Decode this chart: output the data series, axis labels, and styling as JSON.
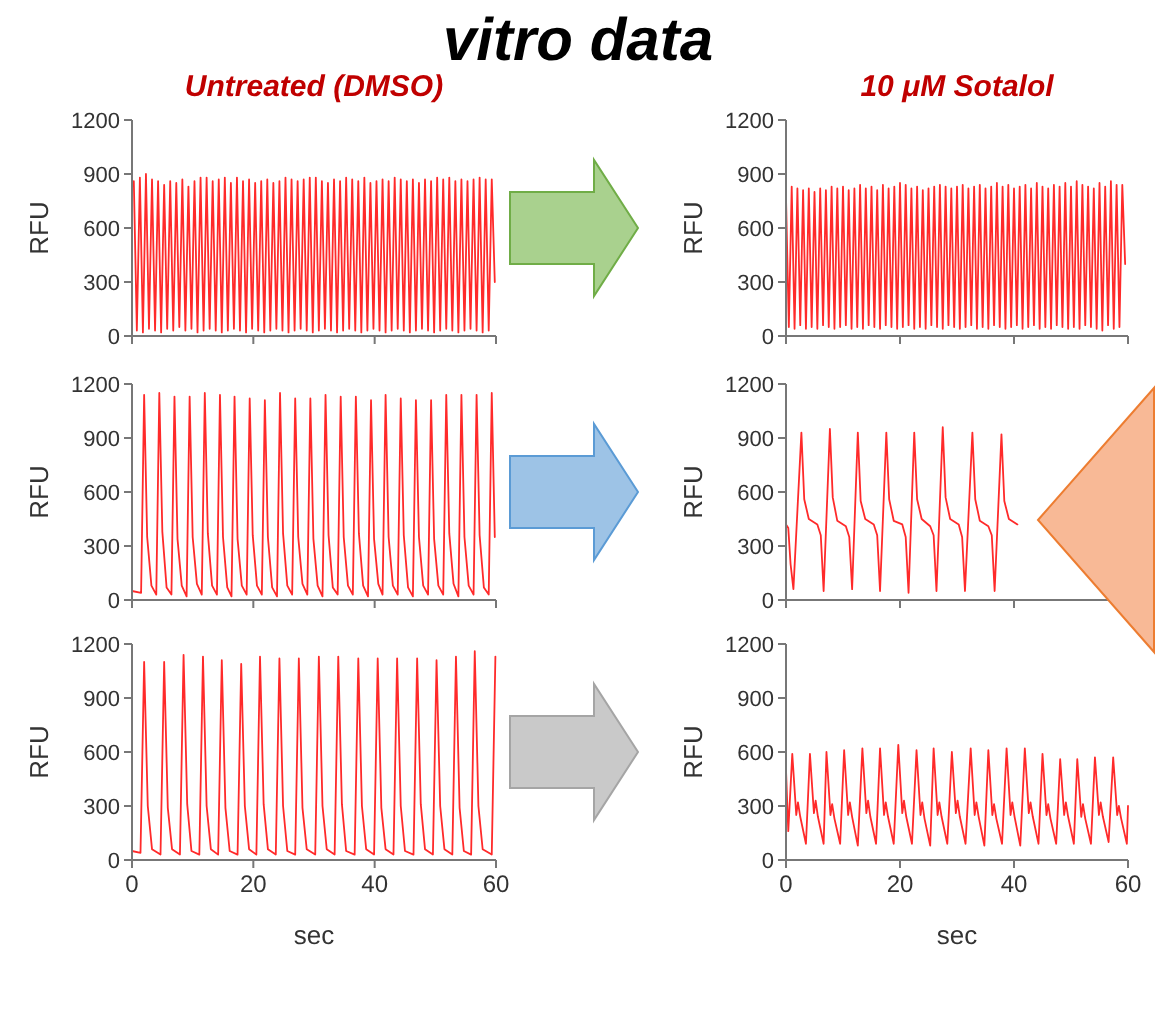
{
  "chart_data": [
    {
      "type": "line",
      "title": "Untreated (DMSO)",
      "annotations": [
        "vitro data"
      ],
      "ylabel": "RFU",
      "xlim": [
        0,
        60
      ],
      "xticks": [
        0,
        20,
        40,
        60
      ],
      "ylim": [
        0,
        1200
      ],
      "yticks": [
        0,
        300,
        600,
        900,
        1200
      ],
      "tick_labels": "y",
      "x": [
        0.3,
        0.8,
        1.3,
        1.8,
        2.3,
        2.8,
        3.3,
        3.8,
        4.3,
        4.8,
        5.3,
        5.8,
        6.3,
        6.8,
        7.3,
        7.8,
        8.3,
        8.8,
        9.3,
        9.8,
        10.3,
        10.8,
        11.3,
        11.8,
        12.3,
        12.8,
        13.3,
        13.8,
        14.3,
        14.8,
        15.3,
        15.8,
        16.3,
        16.8,
        17.3,
        17.8,
        18.3,
        18.8,
        19.3,
        19.8,
        20.3,
        20.8,
        21.3,
        21.8,
        22.3,
        22.8,
        23.3,
        23.8,
        24.3,
        24.8,
        25.3,
        25.8,
        26.3,
        26.8,
        27.3,
        27.8,
        28.3,
        28.8,
        29.3,
        29.8,
        30.3,
        30.8,
        31.3,
        31.8,
        32.3,
        32.8,
        33.3,
        33.8,
        34.3,
        34.8,
        35.3,
        35.8,
        36.3,
        36.8,
        37.3,
        37.8,
        38.3,
        38.8,
        39.3,
        39.8,
        40.3,
        40.8,
        41.3,
        41.8,
        42.3,
        42.8,
        43.3,
        43.8,
        44.3,
        44.8,
        45.3,
        45.8,
        46.3,
        46.8,
        47.3,
        47.8,
        48.3,
        48.8,
        49.3,
        49.8,
        50.3,
        50.8,
        51.3,
        51.8,
        52.3,
        52.8,
        53.3,
        53.8,
        54.3,
        54.8,
        55.3,
        55.8,
        56.3,
        56.8,
        57.3,
        57.8,
        58.3,
        58.8,
        59.3,
        59.8
      ],
      "series": [
        {
          "color": "#ff2a2a",
          "values": [
            860,
            30,
            880,
            20,
            900,
            40,
            870,
            30,
            860,
            20,
            840,
            40,
            860,
            30,
            850,
            50,
            870,
            30,
            830,
            40,
            860,
            20,
            880,
            30,
            880,
            40,
            860,
            30,
            870,
            20,
            880,
            30,
            850,
            40,
            880,
            30,
            860,
            20,
            870,
            40,
            850,
            30,
            860,
            20,
            870,
            30,
            850,
            40,
            860,
            30,
            880,
            20,
            870,
            30,
            860,
            40,
            870,
            30,
            880,
            20,
            880,
            30,
            860,
            40,
            850,
            30,
            870,
            20,
            860,
            30,
            880,
            40,
            870,
            30,
            860,
            20,
            880,
            30,
            850,
            40,
            860,
            30,
            870,
            20,
            860,
            30,
            880,
            40,
            870,
            30,
            860,
            20,
            870,
            30,
            850,
            40,
            870,
            30,
            860,
            20,
            880,
            30,
            870,
            40,
            880,
            30,
            860,
            20,
            870,
            30,
            860,
            40,
            870,
            30,
            880,
            20,
            870,
            30,
            870,
            300
          ]
        }
      ]
    },
    {
      "type": "line",
      "title": "10 μM Sotalol",
      "ylabel": "RFU",
      "xlim": [
        0,
        60
      ],
      "xticks": [
        0,
        20,
        40,
        60
      ],
      "ylim": [
        0,
        1200
      ],
      "yticks": [
        0,
        300,
        600,
        900,
        1200
      ],
      "tick_labels": "y",
      "x": [
        0,
        0.5,
        1,
        1.5,
        2,
        2.5,
        3,
        3.5,
        4,
        4.5,
        5,
        5.5,
        6,
        6.5,
        7,
        7.5,
        8,
        8.5,
        9,
        9.5,
        10,
        10.5,
        11,
        11.5,
        12,
        12.5,
        13,
        13.5,
        14,
        14.5,
        15,
        15.5,
        16,
        16.5,
        17,
        17.5,
        18,
        18.5,
        19,
        19.5,
        20,
        20.5,
        21,
        21.5,
        22,
        22.5,
        23,
        23.5,
        24,
        24.5,
        25,
        25.5,
        26,
        26.5,
        27,
        27.5,
        28,
        28.5,
        29,
        29.5,
        30,
        30.5,
        31,
        31.5,
        32,
        32.5,
        33,
        33.5,
        34,
        34.5,
        35,
        35.5,
        36,
        36.5,
        37,
        37.5,
        38,
        38.5,
        39,
        39.5,
        40,
        40.5,
        41,
        41.5,
        42,
        42.5,
        43,
        43.5,
        44,
        44.5,
        45,
        45.5,
        46,
        46.5,
        47,
        47.5,
        48,
        48.5,
        49,
        49.5,
        50,
        50.5,
        51,
        51.5,
        52,
        52.5,
        53,
        53.5,
        54,
        54.5,
        55,
        55.5,
        56,
        56.5,
        57,
        57.5,
        58,
        58.5,
        59,
        59.5
      ],
      "series": [
        {
          "color": "#ff2a2a",
          "values": [
            770,
            50,
            830,
            40,
            820,
            60,
            810,
            40,
            820,
            50,
            800,
            40,
            820,
            60,
            810,
            50,
            830,
            40,
            820,
            50,
            830,
            60,
            810,
            40,
            820,
            50,
            840,
            40,
            820,
            60,
            830,
            50,
            810,
            40,
            840,
            60,
            820,
            50,
            830,
            40,
            850,
            50,
            840,
            60,
            820,
            40,
            830,
            50,
            810,
            40,
            820,
            60,
            830,
            50,
            840,
            40,
            830,
            60,
            820,
            50,
            830,
            40,
            840,
            50,
            820,
            60,
            830,
            40,
            840,
            50,
            820,
            40,
            830,
            60,
            850,
            50,
            830,
            40,
            840,
            50,
            820,
            60,
            830,
            40,
            840,
            50,
            820,
            60,
            850,
            40,
            830,
            50,
            820,
            40,
            840,
            60,
            830,
            50,
            850,
            40,
            830,
            50,
            860,
            40,
            840,
            60,
            830,
            50,
            820,
            40,
            850,
            30,
            830,
            60,
            860,
            40,
            840,
            50,
            840,
            400
          ]
        }
      ]
    },
    {
      "type": "line",
      "ylabel": "RFU",
      "xlim": [
        0,
        60
      ],
      "xticks": [
        0,
        20,
        40,
        60
      ],
      "ylim": [
        0,
        1200
      ],
      "yticks": [
        0,
        300,
        600,
        900,
        1200
      ],
      "tick_labels": "y",
      "x": [
        0,
        1.5,
        2,
        2.5,
        3.2,
        4,
        4.5,
        5,
        5.7,
        6.5,
        7,
        7.5,
        8.2,
        9,
        9.5,
        10,
        10.7,
        11.5,
        12,
        12.5,
        13.2,
        14,
        14.5,
        15,
        15.7,
        16.4,
        16.9,
        17.4,
        18.1,
        18.9,
        19.4,
        19.9,
        20.6,
        21.4,
        21.9,
        22.4,
        23.1,
        23.9,
        24.4,
        24.9,
        25.6,
        26.4,
        26.9,
        27.4,
        28.1,
        28.9,
        29.4,
        29.9,
        30.6,
        31.4,
        31.9,
        32.4,
        33.1,
        33.9,
        34.4,
        34.9,
        35.6,
        36.4,
        36.9,
        37.4,
        38.1,
        38.9,
        39.4,
        39.9,
        40.6,
        41.3,
        41.8,
        42.3,
        43,
        43.8,
        44.3,
        44.8,
        45.5,
        46.3,
        46.8,
        47.3,
        48,
        48.8,
        49.3,
        49.8,
        50.5,
        51.3,
        51.8,
        52.3,
        53,
        53.8,
        54.3,
        54.8,
        55.5,
        56.3,
        56.8,
        57.3,
        58,
        58.8,
        59.3,
        59.8
      ],
      "series": [
        {
          "color": "#ff2a2a",
          "values": [
            50,
            40,
            1140,
            350,
            80,
            30,
            1150,
            380,
            70,
            30,
            1130,
            340,
            80,
            20,
            1130,
            350,
            90,
            30,
            1150,
            370,
            80,
            30,
            1140,
            350,
            70,
            20,
            1130,
            340,
            80,
            30,
            1120,
            360,
            80,
            30,
            1110,
            350,
            70,
            20,
            1150,
            370,
            80,
            30,
            1120,
            350,
            90,
            30,
            1120,
            340,
            80,
            20,
            1140,
            360,
            70,
            30,
            1130,
            350,
            80,
            30,
            1130,
            370,
            80,
            20,
            1110,
            340,
            90,
            30,
            1140,
            350,
            80,
            30,
            1120,
            360,
            70,
            20,
            1110,
            350,
            80,
            30,
            1110,
            340,
            80,
            30,
            1140,
            370,
            90,
            20,
            1140,
            350,
            80,
            30,
            1140,
            360,
            70,
            30,
            1150,
            350
          ]
        }
      ]
    },
    {
      "type": "line",
      "ylabel": "RFU",
      "xlim": [
        0,
        60
      ],
      "xticks": [
        0,
        20,
        40,
        60
      ],
      "ylim": [
        0,
        1200
      ],
      "yticks": [
        0,
        300,
        600,
        900,
        1200
      ],
      "tick_labels": "y",
      "x": [
        0,
        0.4,
        0.8,
        1.3,
        2.7,
        3.2,
        4,
        5.5,
        6.1,
        6.6,
        7.7,
        8.2,
        9,
        10.5,
        11.1,
        11.6,
        12.6,
        13.1,
        13.9,
        15.4,
        16,
        16.5,
        17.6,
        18.1,
        18.9,
        20.4,
        21,
        21.5,
        22.5,
        23,
        23.8,
        25.3,
        25.9,
        26.4,
        27.5,
        28,
        28.8,
        30.3,
        30.9,
        31.4,
        32.7,
        33.2,
        34,
        35.5,
        36.1,
        36.6,
        37.8,
        38.3,
        39.1,
        40.6
      ],
      "series": [
        {
          "color": "#ff2a2a",
          "values": [
            420,
            400,
            200,
            60,
            930,
            560,
            450,
            420,
            360,
            50,
            950,
            570,
            440,
            410,
            350,
            60,
            930,
            550,
            450,
            420,
            360,
            50,
            930,
            560,
            440,
            420,
            350,
            40,
            930,
            560,
            450,
            410,
            360,
            50,
            960,
            570,
            450,
            420,
            350,
            50,
            930,
            560,
            440,
            410,
            360,
            50,
            920,
            550,
            450,
            420
          ]
        }
      ]
    },
    {
      "type": "line",
      "xlabel": "sec",
      "ylabel": "RFU",
      "xlim": [
        0,
        60
      ],
      "xticks": [
        0,
        20,
        40,
        60
      ],
      "ylim": [
        0,
        1200
      ],
      "yticks": [
        0,
        300,
        600,
        900,
        1200
      ],
      "x": [
        0,
        1.4,
        2,
        2.6,
        3.3,
        4.7,
        5.3,
        5.9,
        6.6,
        7.9,
        8.5,
        9.1,
        9.8,
        11.1,
        11.7,
        12.3,
        13,
        14.2,
        14.8,
        15.4,
        16.1,
        17.4,
        18,
        18.6,
        19.3,
        20.5,
        21.1,
        21.7,
        22.4,
        23.7,
        24.3,
        24.9,
        25.6,
        26.9,
        27.5,
        28.1,
        28.8,
        30.2,
        30.8,
        31.4,
        32.1,
        33.4,
        34,
        34.6,
        35.3,
        36.7,
        37.3,
        37.9,
        38.6,
        39.9,
        40.5,
        41.1,
        41.8,
        43.1,
        43.7,
        44.3,
        45,
        46.4,
        47,
        47.6,
        48.3,
        49.6,
        50.2,
        50.8,
        51.5,
        52.8,
        53.4,
        54,
        54.7,
        55.9,
        56.5,
        57.1,
        57.8,
        59.3,
        59.9
      ],
      "series": [
        {
          "color": "#ff2a2a",
          "values": [
            50,
            40,
            1100,
            300,
            60,
            30,
            1100,
            290,
            60,
            30,
            1140,
            310,
            50,
            30,
            1130,
            300,
            60,
            30,
            1110,
            290,
            50,
            30,
            1090,
            300,
            60,
            30,
            1130,
            310,
            60,
            30,
            1120,
            300,
            50,
            30,
            1120,
            290,
            60,
            30,
            1130,
            300,
            60,
            30,
            1130,
            310,
            50,
            30,
            1120,
            300,
            60,
            30,
            1120,
            290,
            60,
            30,
            1120,
            300,
            50,
            30,
            1120,
            310,
            60,
            30,
            1110,
            300,
            60,
            30,
            1130,
            290,
            50,
            30,
            1160,
            300,
            60,
            30,
            1130
          ]
        }
      ]
    },
    {
      "type": "line",
      "xlabel": "sec",
      "ylabel": "RFU",
      "xlim": [
        0,
        60
      ],
      "xticks": [
        0,
        20,
        40,
        60
      ],
      "ylim": [
        0,
        1200
      ],
      "yticks": [
        0,
        300,
        600,
        900,
        1200
      ],
      "x": [
        0,
        0.4,
        1.1,
        1.8,
        2.1,
        2.5,
        3.5,
        4.2,
        4.9,
        5.2,
        5.6,
        6.6,
        7.1,
        7.8,
        8.1,
        8.5,
        9.5,
        10.2,
        10.9,
        11.2,
        11.6,
        12.6,
        13.4,
        14.1,
        14.4,
        14.8,
        15.8,
        16.5,
        17.2,
        17.5,
        17.9,
        18.9,
        19.7,
        20.4,
        20.7,
        21.1,
        22.1,
        22.9,
        23.6,
        23.9,
        24.3,
        25.3,
        25.9,
        26.6,
        26.9,
        27.3,
        28.3,
        29.1,
        29.8,
        30.1,
        30.5,
        31.5,
        32.4,
        33.1,
        33.4,
        33.8,
        34.8,
        35.5,
        36.2,
        36.5,
        36.9,
        37.9,
        38.7,
        39.4,
        39.7,
        40.1,
        41.1,
        41.9,
        42.6,
        42.9,
        43.3,
        44.3,
        45,
        45.7,
        46,
        46.4,
        47.4,
        48.1,
        48.8,
        49.1,
        49.5,
        50.5,
        51.1,
        51.8,
        52.1,
        52.5,
        53.5,
        54.2,
        54.9,
        55.2,
        55.6,
        56.6,
        57.4,
        58.1,
        58.4,
        58.8,
        59.8,
        60
      ],
      "series": [
        {
          "color": "#ff2a2a",
          "values": [
            500,
            160,
            590,
            250,
            320,
            240,
            90,
            590,
            260,
            330,
            240,
            90,
            600,
            250,
            310,
            230,
            90,
            610,
            250,
            320,
            240,
            80,
            620,
            260,
            330,
            240,
            90,
            620,
            250,
            320,
            240,
            90,
            640,
            260,
            330,
            240,
            90,
            610,
            250,
            320,
            230,
            80,
            620,
            250,
            320,
            240,
            90,
            600,
            260,
            330,
            240,
            90,
            620,
            250,
            320,
            240,
            80,
            610,
            250,
            310,
            230,
            90,
            620,
            250,
            320,
            240,
            80,
            620,
            260,
            320,
            240,
            90,
            590,
            250,
            310,
            230,
            90,
            560,
            250,
            320,
            240,
            90,
            560,
            240,
            310,
            230,
            90,
            570,
            250,
            320,
            240,
            100,
            570,
            250,
            300,
            230,
            90,
            300
          ]
        }
      ]
    }
  ]
}
